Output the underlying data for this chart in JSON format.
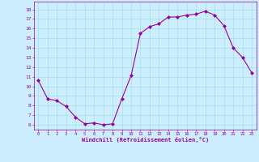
{
  "x": [
    0,
    1,
    2,
    3,
    4,
    5,
    6,
    7,
    8,
    9,
    10,
    11,
    12,
    13,
    14,
    15,
    16,
    17,
    18,
    19,
    20,
    21,
    22,
    23
  ],
  "y": [
    10.6,
    8.7,
    8.5,
    7.9,
    6.8,
    6.1,
    6.2,
    6.0,
    6.1,
    8.7,
    11.1,
    15.5,
    16.2,
    16.5,
    17.2,
    17.2,
    17.4,
    17.5,
    17.8,
    17.4,
    16.3,
    14.0,
    13.0,
    11.4
  ],
  "line_color": "#990099",
  "marker": "D",
  "marker_size": 2,
  "bg_color": "#cceeff",
  "grid_color": "#99dddd",
  "axis_label_color": "#990099",
  "tick_color": "#990099",
  "xlabel": "Windchill (Refroidissement éolien,°C)",
  "ylim": [
    5.5,
    18.8
  ],
  "xlim": [
    -0.5,
    23.5
  ],
  "yticks": [
    6,
    7,
    8,
    9,
    10,
    11,
    12,
    13,
    14,
    15,
    16,
    17,
    18
  ],
  "xticks": [
    0,
    1,
    2,
    3,
    4,
    5,
    6,
    7,
    8,
    9,
    10,
    11,
    12,
    13,
    14,
    15,
    16,
    17,
    18,
    19,
    20,
    21,
    22,
    23
  ]
}
